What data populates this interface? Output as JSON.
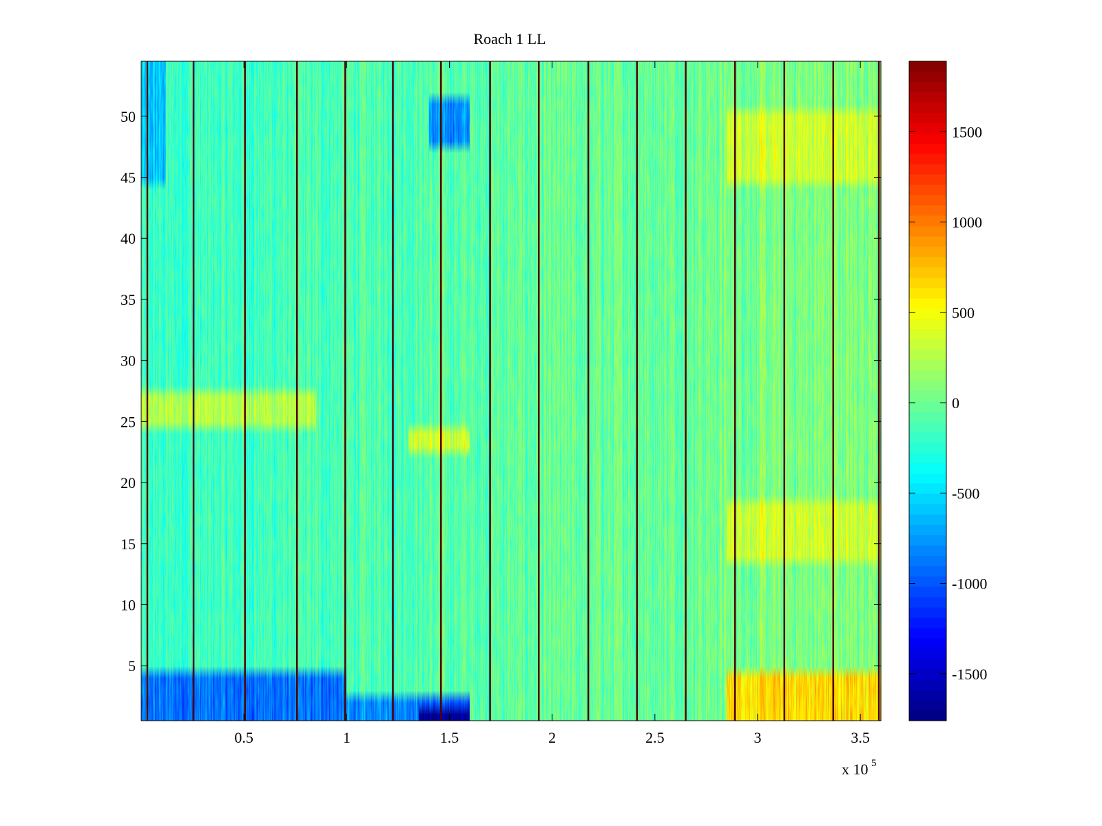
{
  "chart_data": {
    "type": "heatmap",
    "title": "Roach 1 LL",
    "xlabel": "",
    "ylabel": "",
    "x_range": [
      0,
      360000
    ],
    "y_range": [
      0.5,
      54.5
    ],
    "x_ticks": [
      {
        "value": 50000,
        "label": "0.5"
      },
      {
        "value": 100000,
        "label": "1"
      },
      {
        "value": 150000,
        "label": "1.5"
      },
      {
        "value": 200000,
        "label": "2"
      },
      {
        "value": 250000,
        "label": "2.5"
      },
      {
        "value": 300000,
        "label": "3"
      },
      {
        "value": 350000,
        "label": "3.5"
      }
    ],
    "x_exponent_label": "x 10",
    "x_exponent_power": "5",
    "y_ticks": [
      {
        "value": 5,
        "label": "5"
      },
      {
        "value": 10,
        "label": "10"
      },
      {
        "value": 15,
        "label": "15"
      },
      {
        "value": 20,
        "label": "20"
      },
      {
        "value": 25,
        "label": "25"
      },
      {
        "value": 30,
        "label": "30"
      },
      {
        "value": 35,
        "label": "35"
      },
      {
        "value": 40,
        "label": "40"
      },
      {
        "value": 45,
        "label": "45"
      },
      {
        "value": 50,
        "label": "50"
      }
    ],
    "colorbar": {
      "colormap": "jet",
      "range": [
        -1760,
        1890
      ],
      "ticks": [
        {
          "value": -1500,
          "label": "-1500"
        },
        {
          "value": -1000,
          "label": "-1000"
        },
        {
          "value": -500,
          "label": "-500"
        },
        {
          "value": 0,
          "label": "0"
        },
        {
          "value": 500,
          "label": "500"
        },
        {
          "value": 1000,
          "label": "1000"
        },
        {
          "value": 1500,
          "label": "1500"
        }
      ]
    },
    "rows": 54,
    "baseline_value": -200,
    "trend_end_value": 80,
    "vertical_lines_x": [
      3000,
      25500,
      50500,
      75800,
      99300,
      122500,
      145900,
      169800,
      193500,
      217600,
      241300,
      265000,
      289000,
      313000,
      336800,
      359000
    ],
    "vertical_line_value": 1850,
    "regions": [
      {
        "x": [
          0,
          100000
        ],
        "y": [
          1,
          4
        ],
        "value": -900
      },
      {
        "x": [
          100000,
          135000
        ],
        "y": [
          1,
          2
        ],
        "value": -800
      },
      {
        "x": [
          135000,
          160000
        ],
        "y": [
          1,
          1
        ],
        "value": -1700
      },
      {
        "x": [
          135000,
          160000
        ],
        "y": [
          2,
          2
        ],
        "value": -1000
      },
      {
        "x": [
          140000,
          160000
        ],
        "y": [
          48,
          51
        ],
        "value": -800
      },
      {
        "x": [
          0,
          12000
        ],
        "y": [
          45,
          54
        ],
        "value": -600
      },
      {
        "x": [
          0,
          85000
        ],
        "y": [
          25,
          27
        ],
        "value": 250
      },
      {
        "x": [
          130000,
          160000
        ],
        "y": [
          23,
          24
        ],
        "value": 350
      },
      {
        "x": [
          285000,
          360000
        ],
        "y": [
          1,
          4
        ],
        "value": 650
      },
      {
        "x": [
          285000,
          360000
        ],
        "y": [
          14,
          18
        ],
        "value": 350
      },
      {
        "x": [
          285000,
          360000
        ],
        "y": [
          45,
          50
        ],
        "value": 350
      }
    ]
  }
}
